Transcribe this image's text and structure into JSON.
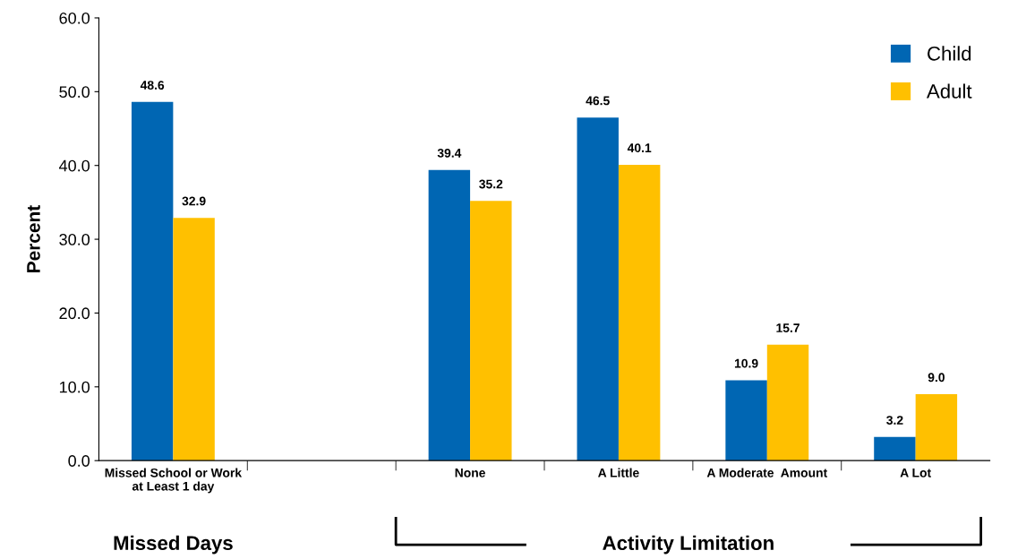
{
  "chart_data": {
    "type": "bar",
    "ylabel": "Percent",
    "categories": [
      "Missed School or Work\nat Least 1 day",
      null,
      "None",
      "A Little",
      "A Moderate  Amount",
      "A Lot"
    ],
    "series": [
      {
        "name": "Child",
        "color": "#0066b3",
        "values": [
          48.6,
          null,
          39.4,
          46.5,
          10.9,
          3.2
        ],
        "value_labels": [
          "48.6",
          null,
          "39.4",
          "46.5",
          "10.9",
          "3.2"
        ]
      },
      {
        "name": "Adult",
        "color": "#ffc000",
        "values": [
          32.9,
          null,
          35.2,
          40.1,
          15.7,
          9.0
        ],
        "value_labels": [
          "32.9",
          null,
          "35.2",
          "40.1",
          "15.7",
          "9.0"
        ]
      }
    ],
    "ylim": [
      0,
      60
    ],
    "yticks": [
      {
        "value": 0,
        "label": "0.0"
      },
      {
        "value": 10,
        "label": "10.0"
      },
      {
        "value": 20,
        "label": "20.0"
      },
      {
        "value": 30,
        "label": "30.0"
      },
      {
        "value": 40,
        "label": "40.0"
      },
      {
        "value": 50,
        "label": "50.0"
      },
      {
        "value": 60,
        "label": "60.0"
      }
    ],
    "legend": "top right",
    "grid": false,
    "annotations": [
      "Missed Days",
      "Activity Limitation"
    ]
  }
}
